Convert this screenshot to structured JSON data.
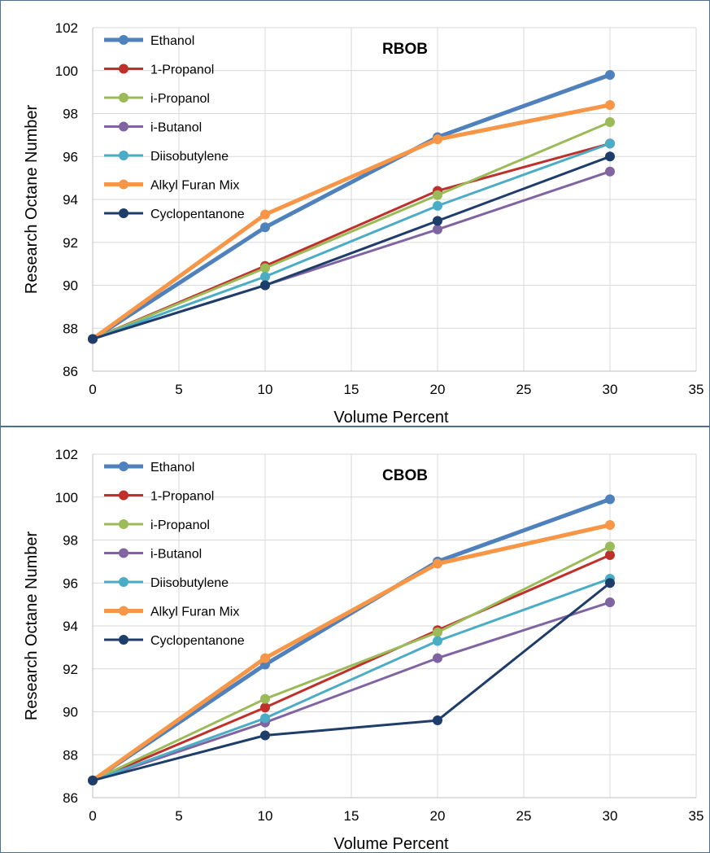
{
  "chart_data": [
    {
      "type": "line",
      "title": "RBOB",
      "xlabel": "Volume Percent",
      "ylabel": "Research Octane Number",
      "xlim": [
        0,
        35
      ],
      "ylim": [
        86,
        102
      ],
      "xticks": [
        "0",
        "5",
        "10",
        "15",
        "20",
        "25",
        "30",
        "35"
      ],
      "yticks": [
        "86",
        "88",
        "90",
        "92",
        "94",
        "96",
        "98",
        "100",
        "102"
      ],
      "grid": true,
      "legend": "top-left",
      "x": [
        0,
        10,
        20,
        30
      ],
      "series": [
        {
          "name": "Ethanol",
          "values": [
            87.5,
            92.7,
            96.9,
            99.8
          ],
          "color": "#4f81bd"
        },
        {
          "name": "1-Propanol",
          "values": [
            87.5,
            90.9,
            94.4,
            96.6
          ],
          "color": "#c0302b"
        },
        {
          "name": "i-Propanol",
          "values": [
            87.5,
            90.8,
            94.2,
            97.6
          ],
          "color": "#9bbb59"
        },
        {
          "name": "i-Butanol",
          "values": [
            87.5,
            90.0,
            92.6,
            95.3
          ],
          "color": "#8064a2"
        },
        {
          "name": "Diisobutylene",
          "values": [
            87.5,
            90.4,
            93.7,
            96.6
          ],
          "color": "#4bacc6"
        },
        {
          "name": "Alkyl Furan Mix",
          "values": [
            87.5,
            93.3,
            96.8,
            98.4
          ],
          "color": "#f79646"
        },
        {
          "name": "Cyclopentanone",
          "values": [
            87.5,
            90.0,
            93.0,
            96.0
          ],
          "color": "#1f3d6b"
        }
      ]
    },
    {
      "type": "line",
      "title": "CBOB",
      "xlabel": "Volume Percent",
      "ylabel": "Research Octane Number",
      "xlim": [
        0,
        35
      ],
      "ylim": [
        86,
        102
      ],
      "xticks": [
        "0",
        "5",
        "10",
        "15",
        "20",
        "25",
        "30",
        "35"
      ],
      "yticks": [
        "86",
        "88",
        "90",
        "92",
        "94",
        "96",
        "98",
        "100",
        "102"
      ],
      "grid": true,
      "legend": "top-left",
      "x": [
        0,
        10,
        20,
        30
      ],
      "series": [
        {
          "name": "Ethanol",
          "values": [
            86.8,
            92.2,
            97.0,
            99.9
          ],
          "color": "#4f81bd"
        },
        {
          "name": "1-Propanol",
          "values": [
            86.8,
            90.2,
            93.8,
            97.3
          ],
          "color": "#c0302b"
        },
        {
          "name": "i-Propanol",
          "values": [
            86.8,
            90.6,
            93.7,
            97.7
          ],
          "color": "#9bbb59"
        },
        {
          "name": "i-Butanol",
          "values": [
            86.8,
            89.5,
            92.5,
            95.1
          ],
          "color": "#8064a2"
        },
        {
          "name": "Diisobutylene",
          "values": [
            86.8,
            89.7,
            93.3,
            96.2
          ],
          "color": "#4bacc6"
        },
        {
          "name": "Alkyl Furan Mix",
          "values": [
            86.8,
            92.5,
            96.9,
            98.7
          ],
          "color": "#f79646"
        },
        {
          "name": "Cyclopentanone",
          "values": [
            86.8,
            88.9,
            89.6,
            96.0
          ],
          "color": "#1f3d6b"
        }
      ]
    }
  ]
}
